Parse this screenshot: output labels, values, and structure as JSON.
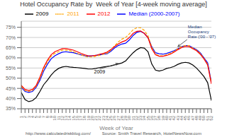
{
  "chart_data": {
    "type": "line",
    "title": "Hotel Occupancy Rate by  Week of Year [4-week moving average]",
    "xlabel": "Week of Year",
    "x": [
      1,
      2,
      3,
      4,
      5,
      6,
      7,
      8,
      9,
      10,
      11,
      12,
      13,
      14,
      15,
      16,
      17,
      18,
      19,
      20,
      21,
      22,
      23,
      24,
      25,
      26,
      27,
      28,
      29,
      30,
      31,
      32,
      33,
      34,
      35,
      36,
      37,
      38,
      39,
      40,
      41,
      42,
      43,
      44,
      45,
      46,
      47,
      48,
      49,
      50,
      51,
      52
    ],
    "series": [
      {
        "name": "2009",
        "color": "black",
        "line_style": "solid",
        "values": [
          0.43,
          0.395,
          0.385,
          0.39,
          0.405,
          0.435,
          0.468,
          0.49,
          0.515,
          0.535,
          0.548,
          0.555,
          0.558,
          0.555,
          0.553,
          0.552,
          0.55,
          0.548,
          0.545,
          0.545,
          0.548,
          0.552,
          0.555,
          0.558,
          0.56,
          0.565,
          0.57,
          0.575,
          0.585,
          0.605,
          0.625,
          0.64,
          0.65,
          0.648,
          0.63,
          0.57,
          0.54,
          0.535,
          0.54,
          0.548,
          0.552,
          0.558,
          0.568,
          0.575,
          0.578,
          0.575,
          0.565,
          0.55,
          0.53,
          0.508,
          0.478,
          0.39
        ]
      },
      {
        "name": "Median (2000-2007)",
        "color": "blue",
        "line_style": "solid",
        "values": [
          0.455,
          0.435,
          0.43,
          0.435,
          0.455,
          0.49,
          0.535,
          0.568,
          0.595,
          0.61,
          0.62,
          0.628,
          0.63,
          0.627,
          0.625,
          0.62,
          0.615,
          0.61,
          0.608,
          0.61,
          0.612,
          0.614,
          0.618,
          0.62,
          0.632,
          0.648,
          0.66,
          0.668,
          0.672,
          0.688,
          0.71,
          0.725,
          0.73,
          0.72,
          0.7,
          0.655,
          0.625,
          0.62,
          0.618,
          0.622,
          0.628,
          0.635,
          0.645,
          0.655,
          0.66,
          0.66,
          0.65,
          0.64,
          0.625,
          0.6,
          0.575,
          0.48
        ]
      },
      {
        "name": "2011",
        "color": "#FFA500",
        "line_style": "dashed",
        "values": [
          0.46,
          0.44,
          0.435,
          0.44,
          0.46,
          0.498,
          0.545,
          0.58,
          0.608,
          0.622,
          0.63,
          0.638,
          0.638,
          0.635,
          0.63,
          0.622,
          0.615,
          0.608,
          0.604,
          0.604,
          0.608,
          0.612,
          0.618,
          0.622,
          0.638,
          0.658,
          0.678,
          0.692,
          0.7,
          0.718,
          0.738,
          0.748,
          0.748,
          0.735,
          0.708,
          0.652,
          0.618,
          0.61,
          0.61,
          0.615,
          0.622,
          0.632,
          0.645,
          0.655,
          0.66,
          0.66,
          0.648,
          0.638,
          0.622,
          0.598,
          0.568,
          0.478
        ]
      },
      {
        "name": "2012",
        "color": "red",
        "line_style": "solid",
        "values": [
          0.465,
          0.445,
          0.44,
          0.445,
          0.465,
          0.505,
          0.553,
          0.588,
          0.615,
          0.63,
          0.638,
          0.645,
          0.645,
          0.642,
          0.638,
          0.63,
          0.622,
          0.615,
          0.61,
          0.61,
          0.612,
          0.618,
          0.622,
          0.628,
          0.64,
          0.655,
          0.668,
          0.678,
          0.685,
          0.7,
          0.72,
          0.73,
          0.732,
          0.72,
          0.698,
          0.645,
          0.615,
          0.608,
          0.608,
          0.612,
          0.618,
          0.628,
          0.64,
          0.65,
          0.656,
          0.655,
          0.645,
          0.635,
          0.618,
          0.595,
          0.565,
          0.472
        ]
      }
    ],
    "xlim": [
      1,
      52
    ],
    "xticks": [
      1,
      2,
      3,
      4,
      5,
      6,
      7,
      8,
      9,
      10,
      11,
      12,
      13,
      14,
      15,
      16,
      17,
      18,
      19,
      20,
      21,
      22,
      23,
      24,
      25,
      26,
      27,
      28,
      29,
      30,
      31,
      32,
      33,
      34,
      35,
      36,
      37,
      38,
      39,
      40,
      41,
      42,
      43,
      44,
      45,
      46,
      47,
      48,
      49,
      50,
      51,
      52
    ],
    "ylim": [
      0.35,
      0.78
    ],
    "yticks": [
      {
        "value": 0.35,
        "label": "35%"
      },
      {
        "value": 0.4,
        "label": "40%"
      },
      {
        "value": 0.45,
        "label": "45%"
      },
      {
        "value": 0.5,
        "label": "50%"
      },
      {
        "value": 0.55,
        "label": "55%"
      },
      {
        "value": 0.6,
        "label": "60%"
      },
      {
        "value": 0.65,
        "label": "65%"
      },
      {
        "value": 0.7,
        "label": "70%"
      },
      {
        "value": 0.75,
        "label": "75%"
      }
    ],
    "grid": true,
    "legend": "top",
    "annotations": [
      {
        "text": "2009",
        "x": 22,
        "y": 0.545,
        "target_x": 27,
        "target_y": 0.572
      },
      {
        "text": "Median\nOccupancy\nRate ('00 - '07)",
        "x": 45.5,
        "y": 0.69,
        "target_x": 43,
        "target_y": 0.655
      }
    ],
    "footer": [
      "http://www.calculatedriskblog.com/",
      "Source: Smith Travel Research, HotelNewsNow.com"
    ]
  }
}
